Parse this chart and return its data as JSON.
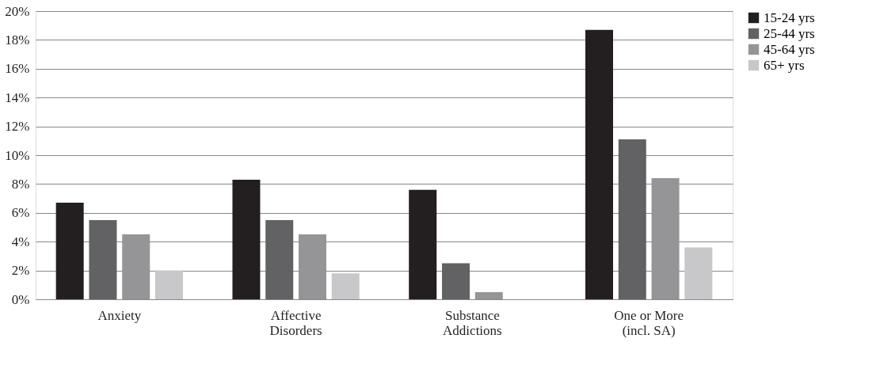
{
  "chart_data": {
    "type": "bar",
    "categories": [
      "Anxiety",
      "Affective\nDisorders",
      "Substance\nAddictions",
      "One or More\n(incl. SA)"
    ],
    "series": [
      {
        "name": "15-24 yrs",
        "color": "#231f20",
        "values": [
          6.7,
          8.3,
          7.6,
          18.7
        ]
      },
      {
        "name": "25-44 yrs",
        "color": "#626163",
        "values": [
          5.5,
          5.5,
          2.5,
          11.1
        ]
      },
      {
        "name": "45-64 yrs",
        "color": "#959597",
        "values": [
          4.5,
          4.5,
          0.5,
          8.4
        ]
      },
      {
        "name": "65+ yrs",
        "color": "#c8c8ca",
        "values": [
          2.0,
          1.8,
          null,
          3.6
        ]
      }
    ],
    "ylim": [
      0,
      20
    ],
    "yticks": [
      {
        "value": 0,
        "label": "0%"
      },
      {
        "value": 2,
        "label": "2%"
      },
      {
        "value": 4,
        "label": "4%"
      },
      {
        "value": 6,
        "label": "6%"
      },
      {
        "value": 8,
        "label": "8%"
      },
      {
        "value": 10,
        "label": "10%"
      },
      {
        "value": 12,
        "label": "12%"
      },
      {
        "value": 14,
        "label": "14%"
      },
      {
        "value": 16,
        "label": "16%"
      },
      {
        "value": 18,
        "label": "18%"
      },
      {
        "value": 20,
        "label": "20%"
      }
    ],
    "grid": "y",
    "legend": "top right"
  }
}
